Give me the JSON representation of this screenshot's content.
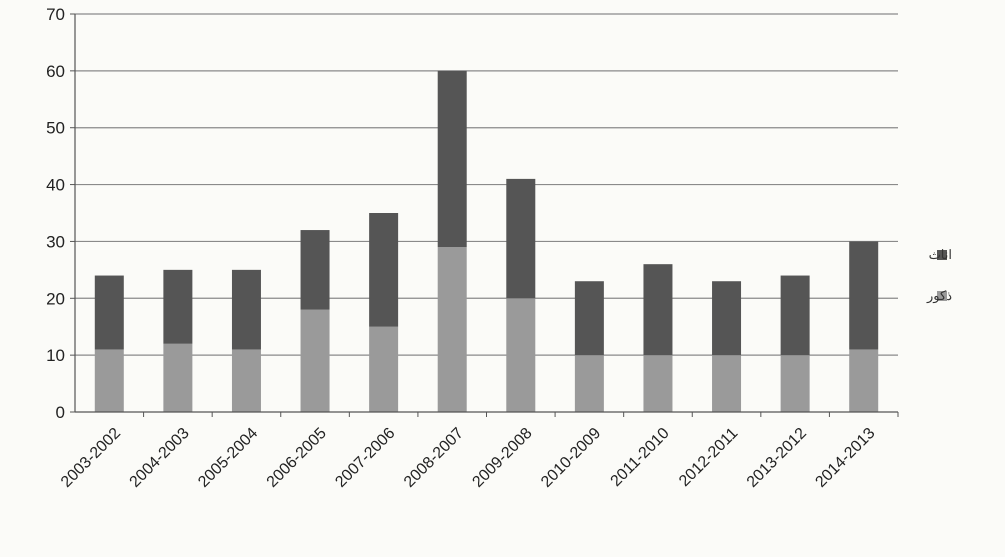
{
  "chart_data": {
    "type": "bar",
    "stacked": true,
    "categories": [
      "2003-2002",
      "2004-2003",
      "2005-2004",
      "2006-2005",
      "2007-2006",
      "2008-2007",
      "2009-2008",
      "2010-2009",
      "2011-2010",
      "2012-2011",
      "2013-2012",
      "2014-2013"
    ],
    "series": [
      {
        "name": "ذكور",
        "color": "#9a9a9a",
        "values": [
          11,
          12,
          11,
          18,
          15,
          29,
          20,
          10,
          10,
          10,
          10,
          11
        ]
      },
      {
        "name": "اناث",
        "color": "#555555",
        "values": [
          13,
          13,
          14,
          14,
          20,
          31,
          21,
          13,
          16,
          13,
          14,
          19
        ]
      }
    ],
    "totals": [
      24,
      25,
      25,
      32,
      35,
      60,
      41,
      23,
      26,
      23,
      24,
      30
    ],
    "title": "",
    "xlabel": "",
    "ylabel": "",
    "ylim": [
      0,
      70
    ],
    "yticks": [
      0,
      10,
      20,
      30,
      40,
      50,
      60,
      70
    ],
    "grid": true,
    "legend": "right",
    "legend_entries": [
      "اناث",
      "ذكور"
    ]
  }
}
